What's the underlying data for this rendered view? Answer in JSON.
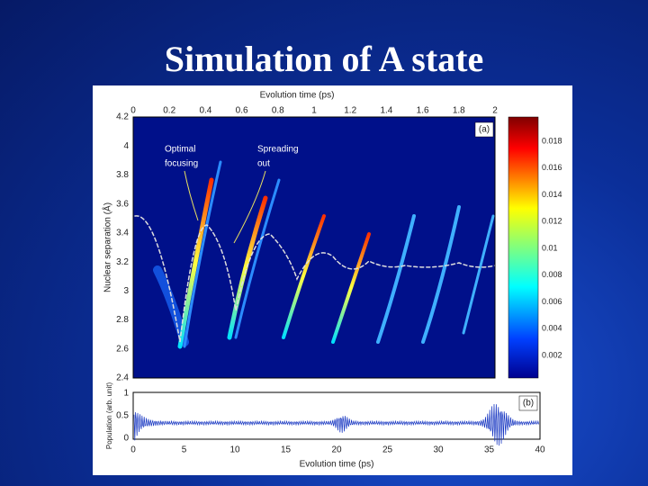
{
  "slide": {
    "title": "Simulation of A state"
  },
  "figure": {
    "panel_a": {
      "top_axis_label": "Evolution time (ps)",
      "top_ticks": [
        "0",
        "0.2",
        "0.4",
        "0.6",
        "0.8",
        "1",
        "1.2",
        "1.4",
        "1.6",
        "1.8",
        "2"
      ],
      "y_axis_label": "Nuclear separation (Å)",
      "y_ticks": [
        "4.2",
        "4",
        "3.8",
        "3.6",
        "3.4",
        "3.2",
        "3",
        "2.8",
        "2.6",
        "2.4"
      ],
      "tag": "(a)",
      "annotations": [
        [
          "Optimal",
          "focusing"
        ],
        [
          "Spreading",
          "out"
        ]
      ]
    },
    "colorbar_ticks": [
      "0.018",
      "0.016",
      "0.014",
      "0.012",
      "0.01",
      "0.008",
      "0.006",
      "0.004",
      "0.002"
    ],
    "panel_b": {
      "y_axis_label": "Population (arb. unit)",
      "y_ticks": [
        "1",
        "0.5",
        "0"
      ],
      "x_ticks": [
        "0",
        "5",
        "10",
        "15",
        "20",
        "25",
        "30",
        "35",
        "40"
      ],
      "x_axis_label": "Evolution time (ps)",
      "tag": "(b)"
    }
  }
}
